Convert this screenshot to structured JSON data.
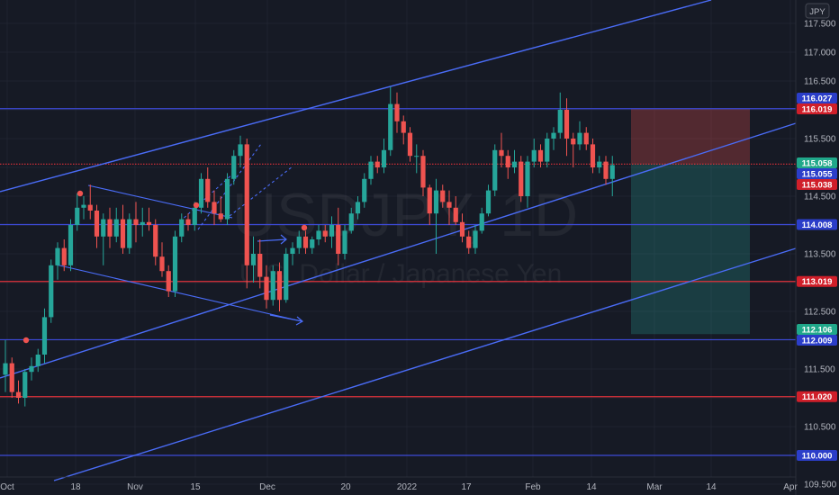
{
  "chart_data": {
    "type": "candlestick",
    "symbol": "USDJPY",
    "interval": "1D",
    "watermark_symbol": "USDJPY, 1D",
    "watermark_description": "U.S. Dollar / Japanese Yen",
    "currency_label": "JPY",
    "ylim": [
      109.5,
      117.8
    ],
    "y_ticks": [
      "117.500",
      "117.000",
      "116.500",
      "116.000",
      "115.500",
      "115.000",
      "114.500",
      "114.000",
      "113.500",
      "113.000",
      "112.500",
      "112.000",
      "111.500",
      "111.000",
      "110.500",
      "110.000",
      "109.500"
    ],
    "x_ticks": [
      "Oct",
      "18",
      "Nov",
      "15",
      "Dec",
      "20",
      "2022",
      "17",
      "Feb",
      "14",
      "Mar",
      "14",
      "Apr"
    ],
    "price_badges": [
      {
        "label": "116.027",
        "value": 116.027,
        "color": "#2b3ec9"
      },
      {
        "label": "116.019",
        "value": 116.019,
        "color": "#d01f2a"
      },
      {
        "label": "115.058",
        "value": 115.058,
        "color": "#20a88a"
      },
      {
        "label": "115.055",
        "value": 115.055,
        "color": "#2b3ec9"
      },
      {
        "label": "115.038",
        "value": 115.038,
        "color": "#d01f2a"
      },
      {
        "label": "114.008",
        "value": 114.008,
        "color": "#2b3ec9"
      },
      {
        "label": "113.019",
        "value": 113.019,
        "color": "#d01f2a"
      },
      {
        "label": "112.106",
        "value": 112.106,
        "color": "#20a88a"
      },
      {
        "label": "112.009",
        "value": 112.009,
        "color": "#2b3ec9"
      },
      {
        "label": "111.020",
        "value": 111.02,
        "color": "#d01f2a"
      },
      {
        "label": "110.000",
        "value": 110.0,
        "color": "#2b3ec9"
      }
    ],
    "horizontal_levels": [
      {
        "value": 116.019,
        "color": "#3d4ad8"
      },
      {
        "value": 115.058,
        "color": "#e0323a",
        "style": "dotted"
      },
      {
        "value": 114.008,
        "color": "#3d4ad8"
      },
      {
        "value": 113.019,
        "color": "#e0323a"
      },
      {
        "value": 112.009,
        "color": "#3d4ad8"
      },
      {
        "value": 111.02,
        "color": "#e0323a"
      },
      {
        "value": 110.0,
        "color": "#3d4ad8"
      }
    ],
    "position_tool": {
      "entry": 115.058,
      "stop": 116.019,
      "target": 112.106
    },
    "colors": {
      "up": "#26a69a",
      "down": "#ef5350",
      "line": "#4a6cf7",
      "background": "#161a25"
    },
    "candles": [
      {
        "o": 111.4,
        "h": 112.0,
        "l": 111.1,
        "c": 111.6
      },
      {
        "o": 111.6,
        "h": 111.7,
        "l": 111.0,
        "c": 111.1
      },
      {
        "o": 111.1,
        "h": 111.3,
        "l": 110.9,
        "c": 111.0
      },
      {
        "o": 111.0,
        "h": 111.5,
        "l": 110.85,
        "c": 111.45
      },
      {
        "o": 111.45,
        "h": 111.7,
        "l": 111.3,
        "c": 111.55
      },
      {
        "o": 111.55,
        "h": 111.85,
        "l": 111.45,
        "c": 111.75
      },
      {
        "o": 111.75,
        "h": 112.55,
        "l": 111.6,
        "c": 112.4
      },
      {
        "o": 112.4,
        "h": 113.4,
        "l": 112.3,
        "c": 113.3
      },
      {
        "o": 113.3,
        "h": 113.7,
        "l": 113.05,
        "c": 113.6
      },
      {
        "o": 113.6,
        "h": 113.75,
        "l": 113.2,
        "c": 113.3
      },
      {
        "o": 113.3,
        "h": 114.1,
        "l": 113.2,
        "c": 114.0
      },
      {
        "o": 114.0,
        "h": 114.55,
        "l": 113.9,
        "c": 114.3
      },
      {
        "o": 114.3,
        "h": 114.5,
        "l": 114.1,
        "c": 114.35
      },
      {
        "o": 114.35,
        "h": 114.7,
        "l": 114.1,
        "c": 114.25
      },
      {
        "o": 114.25,
        "h": 114.35,
        "l": 113.6,
        "c": 113.8
      },
      {
        "o": 113.8,
        "h": 114.2,
        "l": 113.3,
        "c": 114.1
      },
      {
        "o": 114.1,
        "h": 114.3,
        "l": 113.6,
        "c": 113.8
      },
      {
        "o": 113.8,
        "h": 114.3,
        "l": 113.7,
        "c": 114.1
      },
      {
        "o": 114.1,
        "h": 114.35,
        "l": 113.5,
        "c": 113.6
      },
      {
        "o": 113.6,
        "h": 114.2,
        "l": 113.5,
        "c": 114.1
      },
      {
        "o": 114.1,
        "h": 114.4,
        "l": 113.7,
        "c": 114.0
      },
      {
        "o": 114.0,
        "h": 114.3,
        "l": 113.8,
        "c": 114.05
      },
      {
        "o": 114.05,
        "h": 114.3,
        "l": 113.9,
        "c": 114.0
      },
      {
        "o": 114.0,
        "h": 114.1,
        "l": 113.3,
        "c": 113.45
      },
      {
        "o": 113.45,
        "h": 113.7,
        "l": 113.1,
        "c": 113.2
      },
      {
        "o": 113.2,
        "h": 113.3,
        "l": 112.75,
        "c": 112.85
      },
      {
        "o": 112.85,
        "h": 113.9,
        "l": 112.75,
        "c": 113.8
      },
      {
        "o": 113.8,
        "h": 114.2,
        "l": 113.7,
        "c": 114.1
      },
      {
        "o": 114.1,
        "h": 114.2,
        "l": 113.9,
        "c": 114.0
      },
      {
        "o": 114.0,
        "h": 114.4,
        "l": 113.9,
        "c": 114.3
      },
      {
        "o": 114.3,
        "h": 114.9,
        "l": 114.2,
        "c": 114.8
      },
      {
        "o": 114.8,
        "h": 115.0,
        "l": 114.3,
        "c": 114.4
      },
      {
        "o": 114.4,
        "h": 114.6,
        "l": 114.0,
        "c": 114.2
      },
      {
        "o": 114.2,
        "h": 114.5,
        "l": 114.05,
        "c": 114.1
      },
      {
        "o": 114.1,
        "h": 114.9,
        "l": 114.0,
        "c": 114.8
      },
      {
        "o": 114.8,
        "h": 115.3,
        "l": 114.7,
        "c": 115.2
      },
      {
        "o": 115.2,
        "h": 115.55,
        "l": 115.0,
        "c": 115.4
      },
      {
        "o": 115.4,
        "h": 115.5,
        "l": 112.9,
        "c": 113.3
      },
      {
        "o": 113.3,
        "h": 113.8,
        "l": 113.0,
        "c": 113.5
      },
      {
        "o": 113.5,
        "h": 113.75,
        "l": 112.9,
        "c": 113.1
      },
      {
        "o": 113.1,
        "h": 113.3,
        "l": 112.55,
        "c": 112.7
      },
      {
        "o": 112.7,
        "h": 113.3,
        "l": 112.6,
        "c": 113.2
      },
      {
        "o": 113.2,
        "h": 113.35,
        "l": 112.5,
        "c": 112.7
      },
      {
        "o": 112.7,
        "h": 113.6,
        "l": 112.65,
        "c": 113.5
      },
      {
        "o": 113.5,
        "h": 113.7,
        "l": 113.3,
        "c": 113.6
      },
      {
        "o": 113.6,
        "h": 113.9,
        "l": 113.5,
        "c": 113.8
      },
      {
        "o": 113.8,
        "h": 113.9,
        "l": 113.5,
        "c": 113.6
      },
      {
        "o": 113.6,
        "h": 113.8,
        "l": 113.5,
        "c": 113.75
      },
      {
        "o": 113.75,
        "h": 114.0,
        "l": 113.65,
        "c": 113.9
      },
      {
        "o": 113.9,
        "h": 114.0,
        "l": 113.7,
        "c": 113.8
      },
      {
        "o": 113.8,
        "h": 114.15,
        "l": 113.6,
        "c": 114.0
      },
      {
        "o": 114.0,
        "h": 114.3,
        "l": 113.3,
        "c": 113.5
      },
      {
        "o": 113.5,
        "h": 114.0,
        "l": 113.4,
        "c": 113.9
      },
      {
        "o": 113.9,
        "h": 114.3,
        "l": 113.85,
        "c": 114.2
      },
      {
        "o": 114.2,
        "h": 114.5,
        "l": 114.1,
        "c": 114.4
      },
      {
        "o": 114.4,
        "h": 114.9,
        "l": 114.3,
        "c": 114.8
      },
      {
        "o": 114.8,
        "h": 115.2,
        "l": 114.7,
        "c": 115.1
      },
      {
        "o": 115.1,
        "h": 115.2,
        "l": 114.9,
        "c": 115.0
      },
      {
        "o": 115.0,
        "h": 115.5,
        "l": 114.9,
        "c": 115.3
      },
      {
        "o": 115.3,
        "h": 116.4,
        "l": 115.2,
        "c": 116.1
      },
      {
        "o": 116.1,
        "h": 116.3,
        "l": 115.6,
        "c": 115.8
      },
      {
        "o": 115.8,
        "h": 115.9,
        "l": 115.4,
        "c": 115.6
      },
      {
        "o": 115.6,
        "h": 115.7,
        "l": 115.1,
        "c": 115.2
      },
      {
        "o": 115.2,
        "h": 115.4,
        "l": 114.9,
        "c": 115.2
      },
      {
        "o": 115.2,
        "h": 115.3,
        "l": 114.5,
        "c": 114.65
      },
      {
        "o": 114.65,
        "h": 114.7,
        "l": 114.0,
        "c": 114.2
      },
      {
        "o": 114.2,
        "h": 114.8,
        "l": 113.5,
        "c": 114.6
      },
      {
        "o": 114.6,
        "h": 114.7,
        "l": 114.3,
        "c": 114.4
      },
      {
        "o": 114.4,
        "h": 114.6,
        "l": 114.0,
        "c": 114.3
      },
      {
        "o": 114.3,
        "h": 114.5,
        "l": 114.0,
        "c": 114.05
      },
      {
        "o": 114.05,
        "h": 114.2,
        "l": 113.7,
        "c": 113.8
      },
      {
        "o": 113.8,
        "h": 113.9,
        "l": 113.5,
        "c": 113.6
      },
      {
        "o": 113.6,
        "h": 114.0,
        "l": 113.5,
        "c": 113.9
      },
      {
        "o": 113.9,
        "h": 114.3,
        "l": 113.85,
        "c": 114.2
      },
      {
        "o": 114.2,
        "h": 114.7,
        "l": 114.15,
        "c": 114.6
      },
      {
        "o": 114.6,
        "h": 115.4,
        "l": 114.5,
        "c": 115.3
      },
      {
        "o": 115.3,
        "h": 115.6,
        "l": 115.0,
        "c": 115.2
      },
      {
        "o": 115.2,
        "h": 115.3,
        "l": 114.8,
        "c": 115.0
      },
      {
        "o": 115.0,
        "h": 115.3,
        "l": 114.9,
        "c": 115.1
      },
      {
        "o": 115.1,
        "h": 115.2,
        "l": 114.4,
        "c": 114.5
      },
      {
        "o": 114.5,
        "h": 115.2,
        "l": 114.3,
        "c": 115.1
      },
      {
        "o": 115.1,
        "h": 115.5,
        "l": 115.0,
        "c": 115.3
      },
      {
        "o": 115.3,
        "h": 115.4,
        "l": 115.0,
        "c": 115.1
      },
      {
        "o": 115.1,
        "h": 115.6,
        "l": 115.0,
        "c": 115.5
      },
      {
        "o": 115.5,
        "h": 115.7,
        "l": 115.3,
        "c": 115.6
      },
      {
        "o": 115.6,
        "h": 116.3,
        "l": 115.5,
        "c": 116.0
      },
      {
        "o": 116.0,
        "h": 116.2,
        "l": 115.2,
        "c": 115.5
      },
      {
        "o": 115.5,
        "h": 115.6,
        "l": 115.0,
        "c": 115.4
      },
      {
        "o": 115.4,
        "h": 115.8,
        "l": 115.3,
        "c": 115.6
      },
      {
        "o": 115.6,
        "h": 115.7,
        "l": 115.3,
        "c": 115.4
      },
      {
        "o": 115.4,
        "h": 115.5,
        "l": 114.9,
        "c": 115.0
      },
      {
        "o": 115.0,
        "h": 115.2,
        "l": 114.9,
        "c": 115.1
      },
      {
        "o": 115.1,
        "h": 115.2,
        "l": 114.7,
        "c": 114.8
      },
      {
        "o": 114.8,
        "h": 115.2,
        "l": 114.5,
        "c": 115.04
      }
    ]
  }
}
